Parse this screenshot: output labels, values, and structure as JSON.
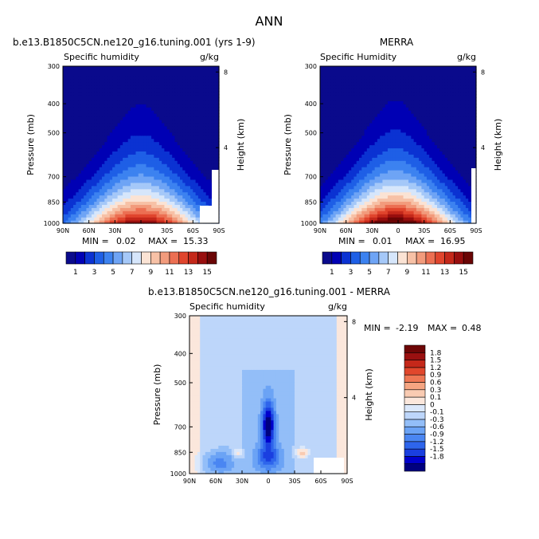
{
  "page_title": "ANN",
  "colors": {
    "abs": [
      "#0a0a8c",
      "#0000b4",
      "#0b32d2",
      "#1e5fe6",
      "#3c82f0",
      "#6ea4f5",
      "#a5c8f8",
      "#d6e6fb",
      "#fbe3d4",
      "#f7c1a6",
      "#f29b7c",
      "#ec6f52",
      "#e0452d",
      "#c4281a",
      "#980e0e",
      "#6a0505"
    ],
    "diff": [
      "#000080",
      "#0000cd",
      "#1a3fe0",
      "#2e65ec",
      "#4a86f2",
      "#6ba3f5",
      "#93bef8",
      "#bdd6fa",
      "#dbe8fb",
      "#fbe7dc",
      "#f9cbb2",
      "#f5a582",
      "#ee7754",
      "#e1472c",
      "#c5281a",
      "#9a1010",
      "#6e0606"
    ]
  },
  "chart_data": [
    {
      "type": "heatmap",
      "title": "b.e13.B1850C5CN.ne120_g16.tuning.001 (yrs 1-9)",
      "variable": "Specific humidity",
      "units": "g/kg",
      "ylabel": "Pressure (mb)",
      "ylabel_right": "Height (km)",
      "x_ticks": [
        "90N",
        "60N",
        "30N",
        "0",
        "30S",
        "60S",
        "90S"
      ],
      "y_ticks": [
        "300",
        "400",
        "500",
        "700",
        "850",
        "1000"
      ],
      "y_right_ticks": [
        "8",
        "4"
      ],
      "min_label": "MIN =",
      "min": "0.02",
      "max_label": "MAX =",
      "max": "15.33",
      "peak_lat": 0,
      "peak_value": 15.33
    },
    {
      "type": "heatmap",
      "title": "MERRA",
      "variable": "Specific Humidity",
      "units": "g/kg",
      "ylabel": "Pressure (mb)",
      "ylabel_right": "Height (km)",
      "x_ticks": [
        "90N",
        "60N",
        "30N",
        "0",
        "30S",
        "60S",
        "90S"
      ],
      "y_ticks": [
        "300",
        "400",
        "500",
        "700",
        "850",
        "1000"
      ],
      "y_right_ticks": [
        "8",
        "4"
      ],
      "min_label": "MIN =",
      "min": "0.01",
      "max_label": "MAX =",
      "max": "16.95",
      "peak_lat": 3,
      "peak_value": 16.95
    },
    {
      "type": "heatmap",
      "title": "b.e13.B1850C5CN.ne120_g16.tuning.001 - MERRA",
      "variable": "Specific humidity",
      "units": "g/kg",
      "ylabel": "Pressure (mb)",
      "ylabel_right": "Height (km)",
      "x_ticks": [
        "90N",
        "60N",
        "30N",
        "0",
        "30S",
        "60S",
        "90S"
      ],
      "y_ticks": [
        "300",
        "400",
        "500",
        "700",
        "850",
        "1000"
      ],
      "y_right_ticks": [
        "8",
        "4"
      ],
      "min_label": "MIN =",
      "min": "-2.19",
      "max_label": "MAX =",
      "max": "0.48"
    }
  ],
  "colorbar_abs": {
    "labels": [
      "1",
      "3",
      "5",
      "7",
      "9",
      "11",
      "13",
      "15"
    ]
  },
  "colorbar_diff": {
    "labels": [
      "1.8",
      "1.5",
      "1.2",
      "0.9",
      "0.6",
      "0.3",
      "0.1",
      "0",
      "-0.1",
      "-0.3",
      "-0.6",
      "-0.9",
      "-1.2",
      "-1.5",
      "-1.8"
    ]
  }
}
